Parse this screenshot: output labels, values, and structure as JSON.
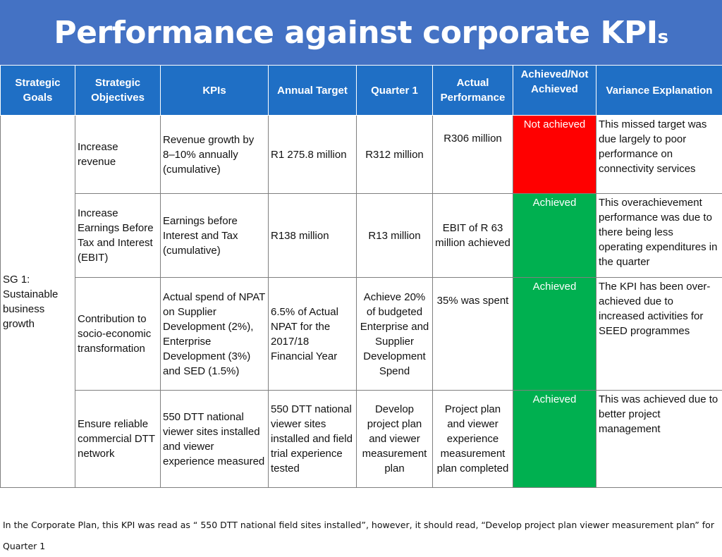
{
  "title": {
    "main": "Performance against corporate KPI",
    "suffix": "s"
  },
  "colors": {
    "header_bg": "#4472c4",
    "table_header_bg": "#1f6fc5",
    "not_achieved": "#ff0000",
    "achieved": "#00b050"
  },
  "table": {
    "headers": [
      "Strategic Goals",
      "Strategic Objectives",
      "KPIs",
      "Annual Target",
      "Quarter 1",
      "Actual Performance",
      "Achieved/Not Achieved",
      "Variance Explanation"
    ],
    "goal": "SG 1: Sustainable business growth",
    "rows": [
      {
        "objective": "Increase revenue",
        "kpi": "Revenue growth by 8–10% annually (cumulative)",
        "annual_target": "R1 275.8 million",
        "quarter1": "R312 million",
        "actual": "R306 million",
        "status": "Not achieved",
        "variance": "This missed target was due largely to poor performance on connectivity services"
      },
      {
        "objective": "Increase Earnings Before Tax and Interest (EBIT)",
        "kpi": "Earnings before Interest and Tax (cumulative)",
        "annual_target": "R138 million",
        "quarter1": "R13 million",
        "actual": "EBIT of  R 63 million achieved",
        "status": "Achieved",
        "variance": "This overachievement performance was due to there being less operating expenditures in the quarter"
      },
      {
        "objective": "Contribution to socio-economic transformation",
        "kpi": "Actual spend of NPAT on Supplier Development (2%), Enterprise Development (3%) and SED (1.5%)",
        "annual_target": "6.5% of Actual NPAT for the 2017/18 Financial Year",
        "quarter1": "Achieve 20% of budgeted Enterprise and Supplier Development Spend",
        "actual": "35% was spent",
        "status": "Achieved",
        "variance": "The KPI has been over- achieved due to increased activities for SEED programmes"
      },
      {
        "objective": "Ensure reliable commercial DTT network",
        "kpi": "550 DTT national viewer sites installed and viewer experience measured",
        "annual_target": "550 DTT national viewer sites installed and field trial experience tested",
        "quarter1": "Develop project plan and viewer measurement plan",
        "actual": "Project plan and viewer experience measurement plan completed",
        "status": "Achieved",
        "variance": "This was achieved due to better project management"
      }
    ]
  },
  "footnote": "In the Corporate Plan, this KPI was read as “ 550 DTT national field sites installed”, however, it should read, “Develop project plan viewer measurement plan” for Quarter 1"
}
